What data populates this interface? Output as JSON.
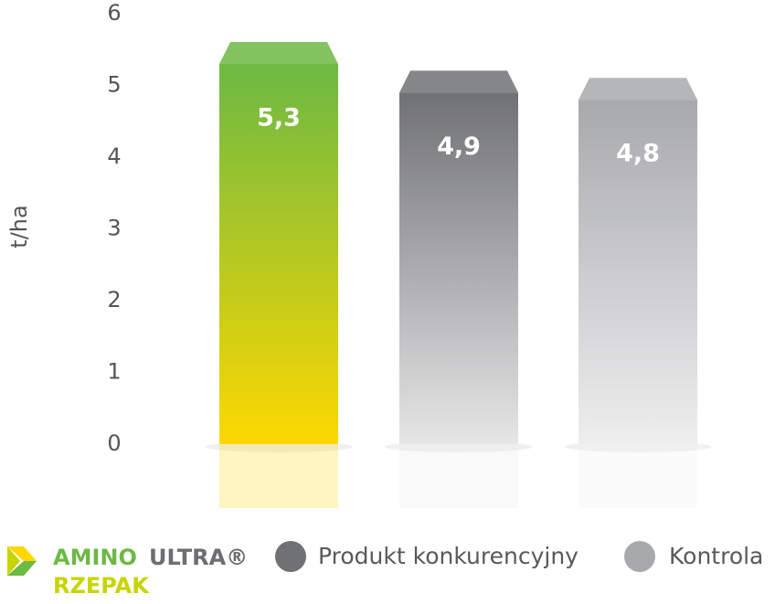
{
  "chart_data": {
    "type": "bar",
    "y_label": "t/ha",
    "ylim": [
      0,
      6
    ],
    "yticks": [
      0,
      1,
      2,
      3,
      4,
      5,
      6
    ],
    "categories": [
      null
    ],
    "series": [
      {
        "name": [
          "AMINO",
          "ULTRA®",
          "RZEPAK"
        ],
        "color": "#6cb944",
        "gradient_end": "#fdd800",
        "values": [
          5.3
        ],
        "value_labels": [
          "5,3"
        ]
      },
      {
        "name": "Produkt konkurencyjny",
        "color": "#707174",
        "gradient_end": "#e6e6e7",
        "values": [
          4.9
        ],
        "value_labels": [
          "4,9"
        ]
      },
      {
        "name": "Kontrola",
        "color": "#a8a9ac",
        "gradient_end": "#eeeeef",
        "values": [
          4.8
        ],
        "value_labels": [
          "4,8"
        ]
      }
    ]
  }
}
